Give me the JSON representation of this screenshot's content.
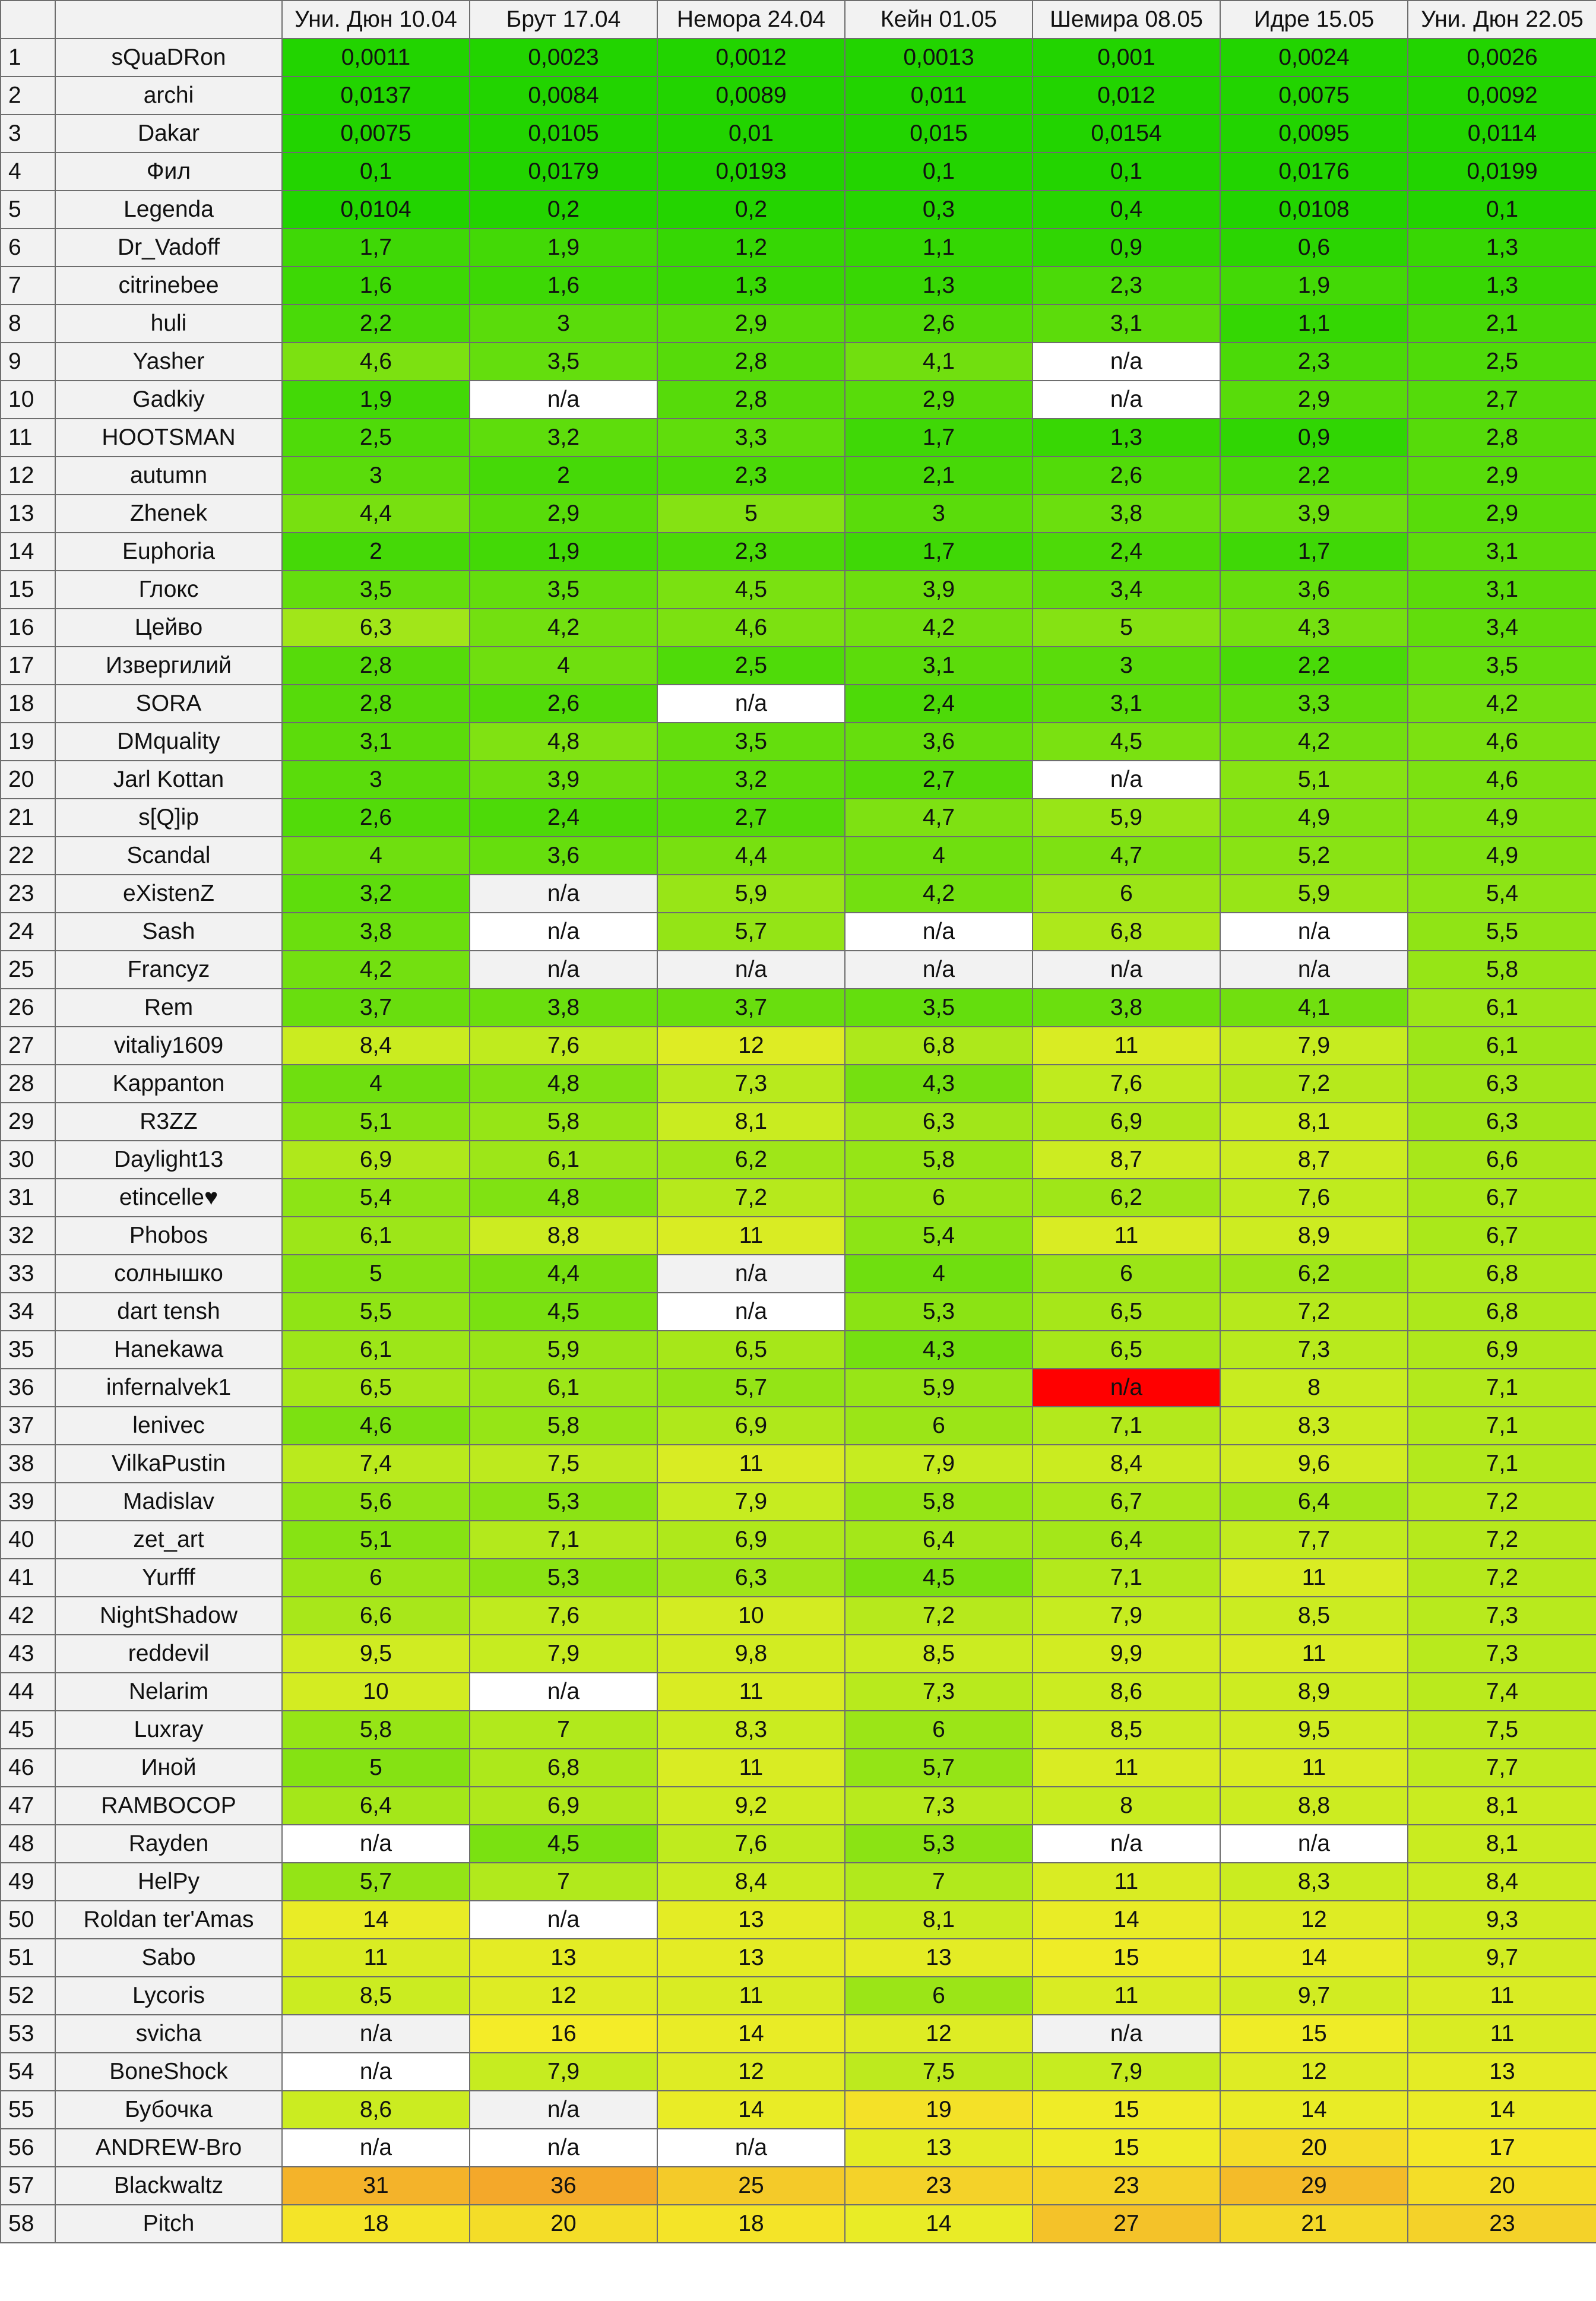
{
  "columns": [
    "Уни. Дюн 10.04",
    "Брут 17.04",
    "Немора 24.04",
    "Кейн 01.05",
    "Шемира 08.05",
    "Идре 15.05",
    "Уни. Дюн 22.05"
  ],
  "rows": [
    {
      "idx": "1",
      "name": "sQuaDRon",
      "values": [
        "0,0011",
        "0,0023",
        "0,0012",
        "0,0013",
        "0,001",
        "0,0024",
        "0,0026"
      ]
    },
    {
      "idx": "2",
      "name": "archi",
      "values": [
        "0,0137",
        "0,0084",
        "0,0089",
        "0,011",
        "0,012",
        "0,0075",
        "0,0092"
      ]
    },
    {
      "idx": "3",
      "name": "Dakar",
      "values": [
        "0,0075",
        "0,0105",
        "0,01",
        "0,015",
        "0,0154",
        "0,0095",
        "0,0114"
      ]
    },
    {
      "idx": "4",
      "name": "Фил",
      "values": [
        "0,1",
        "0,0179",
        "0,0193",
        "0,1",
        "0,1",
        "0,0176",
        "0,0199"
      ]
    },
    {
      "idx": "5",
      "name": "Legenda",
      "values": [
        "0,0104",
        "0,2",
        "0,2",
        "0,3",
        "0,4",
        "0,0108",
        "0,1"
      ]
    },
    {
      "idx": "6",
      "name": "Dr_Vadoff",
      "values": [
        "1,7",
        "1,9",
        "1,2",
        "1,1",
        "0,9",
        "0,6",
        "1,3"
      ]
    },
    {
      "idx": "7",
      "name": "citrinebee",
      "values": [
        "1,6",
        "1,6",
        "1,3",
        "1,3",
        "2,3",
        "1,9",
        "1,3"
      ]
    },
    {
      "idx": "8",
      "name": "huli",
      "values": [
        "2,2",
        "3",
        "2,9",
        "2,6",
        "3,1",
        "1,1",
        "2,1"
      ]
    },
    {
      "idx": "9",
      "name": "Yasher",
      "values": [
        "4,6",
        "3,5",
        "2,8",
        "4,1",
        "n/a",
        "2,3",
        "2,5"
      ]
    },
    {
      "idx": "10",
      "name": "Gadkiy",
      "values": [
        "1,9",
        "n/a",
        "2,8",
        "2,9",
        "n/a",
        "2,9",
        "2,7"
      ]
    },
    {
      "idx": "11",
      "name": "HOOTSMAN",
      "values": [
        "2,5",
        "3,2",
        "3,3",
        "1,7",
        "1,3",
        "0,9",
        "2,8"
      ]
    },
    {
      "idx": "12",
      "name": "autumn",
      "values": [
        "3",
        "2",
        "2,3",
        "2,1",
        "2,6",
        "2,2",
        "2,9"
      ]
    },
    {
      "idx": "13",
      "name": "Zhenek",
      "values": [
        "4,4",
        "2,9",
        "5",
        "3",
        "3,8",
        "3,9",
        "2,9"
      ]
    },
    {
      "idx": "14",
      "name": "Euphoria",
      "values": [
        "2",
        "1,9",
        "2,3",
        "1,7",
        "2,4",
        "1,7",
        "3,1"
      ]
    },
    {
      "idx": "15",
      "name": "Глокс",
      "values": [
        "3,5",
        "3,5",
        "4,5",
        "3,9",
        "3,4",
        "3,6",
        "3,1"
      ]
    },
    {
      "idx": "16",
      "name": "Цейво",
      "values": [
        "6,3",
        "4,2",
        "4,6",
        "4,2",
        "5",
        "4,3",
        "3,4"
      ]
    },
    {
      "idx": "17",
      "name": "Извергилий",
      "values": [
        "2,8",
        "4",
        "2,5",
        "3,1",
        "3",
        "2,2",
        "3,5"
      ]
    },
    {
      "idx": "18",
      "name": "SORA",
      "values": [
        "2,8",
        "2,6",
        "n/a",
        "2,4",
        "3,1",
        "3,3",
        "4,2"
      ]
    },
    {
      "idx": "19",
      "name": "DMquality",
      "values": [
        "3,1",
        "4,8",
        "3,5",
        "3,6",
        "4,5",
        "4,2",
        "4,6"
      ]
    },
    {
      "idx": "20",
      "name": "Jarl Kottan",
      "values": [
        "3",
        "3,9",
        "3,2",
        "2,7",
        "n/a",
        "5,1",
        "4,6"
      ]
    },
    {
      "idx": "21",
      "name": "s[Q]ip",
      "values": [
        "2,6",
        "2,4",
        "2,7",
        "4,7",
        "5,9",
        "4,9",
        "4,9"
      ]
    },
    {
      "idx": "22",
      "name": "Scandal",
      "values": [
        "4",
        "3,6",
        "4,4",
        "4",
        "4,7",
        "5,2",
        "4,9"
      ]
    },
    {
      "idx": "23",
      "name": "eXistenZ",
      "values": [
        "3,2",
        "n/a",
        "5,9",
        "4,2",
        "6",
        "5,9",
        "5,4"
      ]
    },
    {
      "idx": "24",
      "name": "Sash",
      "values": [
        "3,8",
        "n/a",
        "5,7",
        "n/a",
        "6,8",
        "n/a",
        "5,5"
      ]
    },
    {
      "idx": "25",
      "name": "Francyz",
      "values": [
        "4,2",
        "n/a",
        "n/a",
        "n/a",
        "n/a",
        "n/a",
        "5,8"
      ]
    },
    {
      "idx": "26",
      "name": "Rem",
      "values": [
        "3,7",
        "3,8",
        "3,7",
        "3,5",
        "3,8",
        "4,1",
        "6,1"
      ]
    },
    {
      "idx": "27",
      "name": "vitaliy1609",
      "values": [
        "8,4",
        "7,6",
        "12",
        "6,8",
        "11",
        "7,9",
        "6,1"
      ]
    },
    {
      "idx": "28",
      "name": "Kappanton",
      "values": [
        "4",
        "4,8",
        "7,3",
        "4,3",
        "7,6",
        "7,2",
        "6,3"
      ]
    },
    {
      "idx": "29",
      "name": "R3ZZ",
      "values": [
        "5,1",
        "5,8",
        "8,1",
        "6,3",
        "6,9",
        "8,1",
        "6,3"
      ]
    },
    {
      "idx": "30",
      "name": "Daylight13",
      "values": [
        "6,9",
        "6,1",
        "6,2",
        "5,8",
        "8,7",
        "8,7",
        "6,6"
      ]
    },
    {
      "idx": "31",
      "name": "etincelle♥",
      "values": [
        "5,4",
        "4,8",
        "7,2",
        "6",
        "6,2",
        "7,6",
        "6,7"
      ]
    },
    {
      "idx": "32",
      "name": "Phobos",
      "values": [
        "6,1",
        "8,8",
        "11",
        "5,4",
        "11",
        "8,9",
        "6,7"
      ]
    },
    {
      "idx": "33",
      "name": "солнышко",
      "values": [
        "5",
        "4,4",
        "n/a",
        "4",
        "6",
        "6,2",
        "6,8"
      ]
    },
    {
      "idx": "34",
      "name": "dart tensh",
      "values": [
        "5,5",
        "4,5",
        "n/a",
        "5,3",
        "6,5",
        "7,2",
        "6,8"
      ]
    },
    {
      "idx": "35",
      "name": "Hanekawa",
      "values": [
        "6,1",
        "5,9",
        "6,5",
        "4,3",
        "6,5",
        "7,3",
        "6,9"
      ]
    },
    {
      "idx": "36",
      "name": "infernalvek1",
      "values": [
        "6,5",
        "6,1",
        "5,7",
        "5,9",
        "n/a",
        "8",
        "7,1"
      ]
    },
    {
      "idx": "37",
      "name": "lenivec",
      "values": [
        "4,6",
        "5,8",
        "6,9",
        "6",
        "7,1",
        "8,3",
        "7,1"
      ]
    },
    {
      "idx": "38",
      "name": "VilkaPustin",
      "values": [
        "7,4",
        "7,5",
        "11",
        "7,9",
        "8,4",
        "9,6",
        "7,1"
      ]
    },
    {
      "idx": "39",
      "name": "Madislav",
      "values": [
        "5,6",
        "5,3",
        "7,9",
        "5,8",
        "6,7",
        "6,4",
        "7,2"
      ]
    },
    {
      "idx": "40",
      "name": "zet_art",
      "values": [
        "5,1",
        "7,1",
        "6,9",
        "6,4",
        "6,4",
        "7,7",
        "7,2"
      ]
    },
    {
      "idx": "41",
      "name": "Yurfff",
      "values": [
        "6",
        "5,3",
        "6,3",
        "4,5",
        "7,1",
        "11",
        "7,2"
      ]
    },
    {
      "idx": "42",
      "name": "NightShadow",
      "values": [
        "6,6",
        "7,6",
        "10",
        "7,2",
        "7,9",
        "8,5",
        "7,3"
      ]
    },
    {
      "idx": "43",
      "name": "reddevil",
      "values": [
        "9,5",
        "7,9",
        "9,8",
        "8,5",
        "9,9",
        "11",
        "7,3"
      ]
    },
    {
      "idx": "44",
      "name": "Nelarim",
      "values": [
        "10",
        "n/a",
        "11",
        "7,3",
        "8,6",
        "8,9",
        "7,4"
      ]
    },
    {
      "idx": "45",
      "name": "Luxray",
      "values": [
        "5,8",
        "7",
        "8,3",
        "6",
        "8,5",
        "9,5",
        "7,5"
      ]
    },
    {
      "idx": "46",
      "name": "Иной",
      "values": [
        "5",
        "6,8",
        "11",
        "5,7",
        "11",
        "11",
        "7,7"
      ]
    },
    {
      "idx": "47",
      "name": "RAMBOCOP",
      "values": [
        "6,4",
        "6,9",
        "9,2",
        "7,3",
        "8",
        "8,8",
        "8,1"
      ]
    },
    {
      "idx": "48",
      "name": "Rayden",
      "values": [
        "n/a",
        "4,5",
        "7,6",
        "5,3",
        "n/a",
        "n/a",
        "8,1"
      ]
    },
    {
      "idx": "49",
      "name": "HelPy",
      "values": [
        "5,7",
        "7",
        "8,4",
        "7",
        "11",
        "8,3",
        "8,4"
      ]
    },
    {
      "idx": "50",
      "name": "Roldan ter'Amas",
      "values": [
        "14",
        "n/a",
        "13",
        "8,1",
        "14",
        "12",
        "9,3"
      ]
    },
    {
      "idx": "51",
      "name": "Sabo",
      "values": [
        "11",
        "13",
        "13",
        "13",
        "15",
        "14",
        "9,7"
      ]
    },
    {
      "idx": "52",
      "name": "Lycoris",
      "values": [
        "8,5",
        "12",
        "11",
        "6",
        "11",
        "9,7",
        "11"
      ]
    },
    {
      "idx": "53",
      "name": "svicha",
      "values": [
        "n/a",
        "16",
        "14",
        "12",
        "n/a",
        "15",
        "11"
      ]
    },
    {
      "idx": "54",
      "name": "BoneShock",
      "values": [
        "n/a",
        "7,9",
        "12",
        "7,5",
        "7,9",
        "12",
        "13"
      ]
    },
    {
      "idx": "55",
      "name": "Бубочка",
      "values": [
        "8,6",
        "n/a",
        "14",
        "19",
        "15",
        "14",
        "14"
      ]
    },
    {
      "idx": "56",
      "name": "ANDREW-Bro",
      "values": [
        "n/a",
        "n/a",
        "n/a",
        "13",
        "15",
        "20",
        "17"
      ]
    },
    {
      "idx": "57",
      "name": "Blackwaltz",
      "values": [
        "31",
        "36",
        "25",
        "23",
        "23",
        "29",
        "20"
      ]
    },
    {
      "idx": "58",
      "name": "Pitch",
      "values": [
        "18",
        "20",
        "18",
        "14",
        "27",
        "21",
        "23"
      ]
    }
  ],
  "colors": {
    "header_bg": "#f2f2f2",
    "name_bg": "#f2f2f2",
    "na_white": "#ffffff",
    "na_grey": "#f2f2f2",
    "na_red": "#ff0000",
    "scale_low": "#22d400",
    "scale_mid": "#c8ec20",
    "scale_high": "#f4a82a"
  },
  "na_styles": {
    "9-4": "white",
    "10-1": "white",
    "10-4": "white",
    "18-2": "white",
    "20-4": "white",
    "23-1": "grey",
    "24-1": "white",
    "24-3": "white",
    "24-5": "white",
    "25-1": "grey",
    "25-2": "grey",
    "25-3": "grey",
    "25-4": "grey",
    "25-5": "grey",
    "33-2": "grey",
    "34-2": "white",
    "36-4": "red",
    "44-1": "white",
    "48-0": "white",
    "48-4": "white",
    "48-5": "white",
    "50-1": "white",
    "53-0": "grey",
    "53-4": "grey",
    "54-0": "white",
    "55-1": "grey",
    "56-0": "white",
    "56-1": "white",
    "56-2": "white"
  }
}
